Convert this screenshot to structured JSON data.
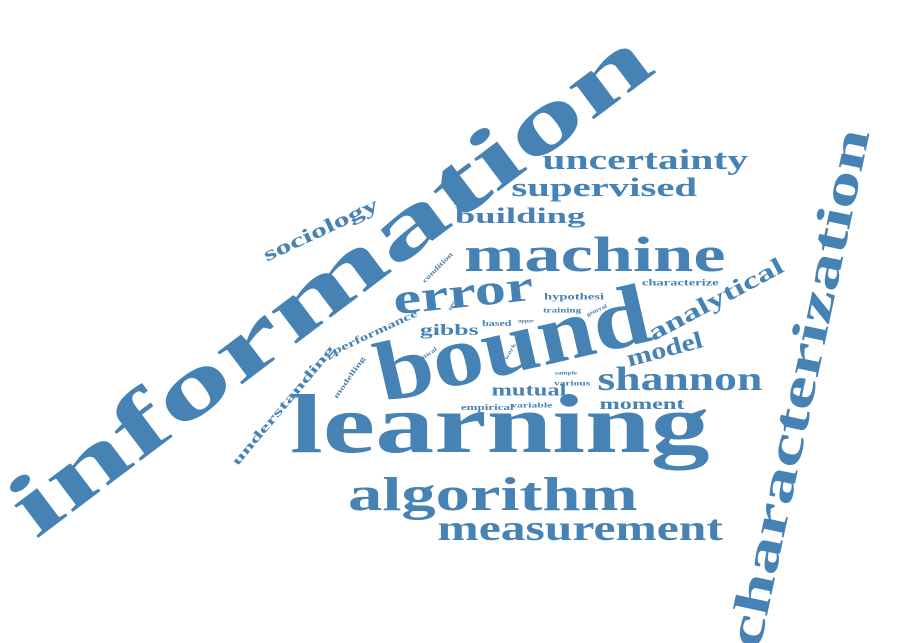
{
  "cloud": {
    "color": "#4682b4",
    "words": [
      {
        "text": "information"
      },
      {
        "text": "learning"
      },
      {
        "text": "bound"
      },
      {
        "text": "characterization"
      },
      {
        "text": "machine"
      },
      {
        "text": "algorithm"
      },
      {
        "text": "error"
      },
      {
        "text": "measurement"
      },
      {
        "text": "shannon"
      },
      {
        "text": "uncertainty"
      },
      {
        "text": "supervised"
      },
      {
        "text": "analytical"
      },
      {
        "text": "model"
      },
      {
        "text": "building"
      },
      {
        "text": "sociology"
      },
      {
        "text": "gibbs"
      },
      {
        "text": "mutual"
      },
      {
        "text": "moment"
      },
      {
        "text": "understanding"
      },
      {
        "text": "performance"
      },
      {
        "text": "characterize"
      },
      {
        "text": "hypothesi"
      },
      {
        "text": "empirical"
      },
      {
        "text": "variable"
      },
      {
        "text": "training"
      },
      {
        "text": "based"
      },
      {
        "text": "modelling"
      },
      {
        "text": "various"
      },
      {
        "text": "condition"
      },
      {
        "text": "result"
      },
      {
        "text": "critical"
      },
      {
        "text": "general"
      },
      {
        "text": "upper"
      },
      {
        "text": "sample"
      },
      {
        "text": "work"
      }
    ]
  }
}
